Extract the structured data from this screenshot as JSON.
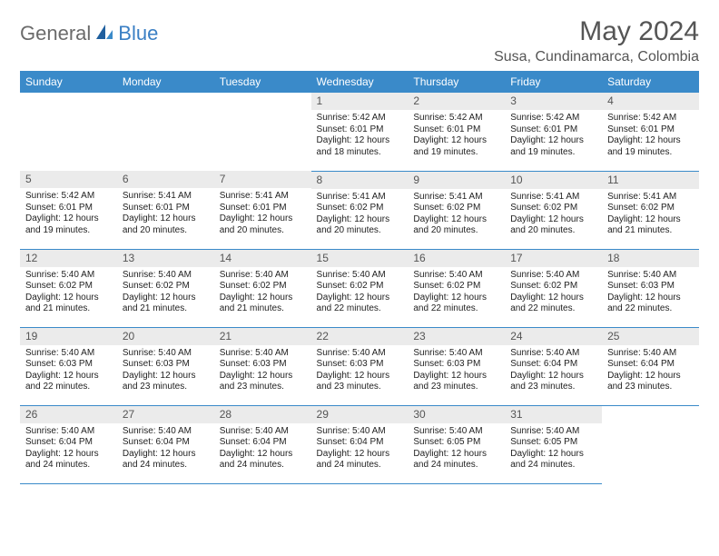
{
  "brand": {
    "part1": "General",
    "part2": "Blue"
  },
  "title": "May 2024",
  "location": "Susa, Cundinamarca, Colombia",
  "header_bg": "#3a8ac9",
  "dayname_bg": "#ebebeb",
  "weekdays": [
    "Sunday",
    "Monday",
    "Tuesday",
    "Wednesday",
    "Thursday",
    "Friday",
    "Saturday"
  ],
  "labels": {
    "sunrise": "Sunrise:",
    "sunset": "Sunset:",
    "daylight": "Daylight:"
  },
  "weeks": [
    [
      null,
      null,
      null,
      {
        "d": "1",
        "sr": "5:42 AM",
        "ss": "6:01 PM",
        "dl": "12 hours and 18 minutes."
      },
      {
        "d": "2",
        "sr": "5:42 AM",
        "ss": "6:01 PM",
        "dl": "12 hours and 19 minutes."
      },
      {
        "d": "3",
        "sr": "5:42 AM",
        "ss": "6:01 PM",
        "dl": "12 hours and 19 minutes."
      },
      {
        "d": "4",
        "sr": "5:42 AM",
        "ss": "6:01 PM",
        "dl": "12 hours and 19 minutes."
      }
    ],
    [
      {
        "d": "5",
        "sr": "5:42 AM",
        "ss": "6:01 PM",
        "dl": "12 hours and 19 minutes."
      },
      {
        "d": "6",
        "sr": "5:41 AM",
        "ss": "6:01 PM",
        "dl": "12 hours and 20 minutes."
      },
      {
        "d": "7",
        "sr": "5:41 AM",
        "ss": "6:01 PM",
        "dl": "12 hours and 20 minutes."
      },
      {
        "d": "8",
        "sr": "5:41 AM",
        "ss": "6:02 PM",
        "dl": "12 hours and 20 minutes."
      },
      {
        "d": "9",
        "sr": "5:41 AM",
        "ss": "6:02 PM",
        "dl": "12 hours and 20 minutes."
      },
      {
        "d": "10",
        "sr": "5:41 AM",
        "ss": "6:02 PM",
        "dl": "12 hours and 20 minutes."
      },
      {
        "d": "11",
        "sr": "5:41 AM",
        "ss": "6:02 PM",
        "dl": "12 hours and 21 minutes."
      }
    ],
    [
      {
        "d": "12",
        "sr": "5:40 AM",
        "ss": "6:02 PM",
        "dl": "12 hours and 21 minutes."
      },
      {
        "d": "13",
        "sr": "5:40 AM",
        "ss": "6:02 PM",
        "dl": "12 hours and 21 minutes."
      },
      {
        "d": "14",
        "sr": "5:40 AM",
        "ss": "6:02 PM",
        "dl": "12 hours and 21 minutes."
      },
      {
        "d": "15",
        "sr": "5:40 AM",
        "ss": "6:02 PM",
        "dl": "12 hours and 22 minutes."
      },
      {
        "d": "16",
        "sr": "5:40 AM",
        "ss": "6:02 PM",
        "dl": "12 hours and 22 minutes."
      },
      {
        "d": "17",
        "sr": "5:40 AM",
        "ss": "6:02 PM",
        "dl": "12 hours and 22 minutes."
      },
      {
        "d": "18",
        "sr": "5:40 AM",
        "ss": "6:03 PM",
        "dl": "12 hours and 22 minutes."
      }
    ],
    [
      {
        "d": "19",
        "sr": "5:40 AM",
        "ss": "6:03 PM",
        "dl": "12 hours and 22 minutes."
      },
      {
        "d": "20",
        "sr": "5:40 AM",
        "ss": "6:03 PM",
        "dl": "12 hours and 23 minutes."
      },
      {
        "d": "21",
        "sr": "5:40 AM",
        "ss": "6:03 PM",
        "dl": "12 hours and 23 minutes."
      },
      {
        "d": "22",
        "sr": "5:40 AM",
        "ss": "6:03 PM",
        "dl": "12 hours and 23 minutes."
      },
      {
        "d": "23",
        "sr": "5:40 AM",
        "ss": "6:03 PM",
        "dl": "12 hours and 23 minutes."
      },
      {
        "d": "24",
        "sr": "5:40 AM",
        "ss": "6:04 PM",
        "dl": "12 hours and 23 minutes."
      },
      {
        "d": "25",
        "sr": "5:40 AM",
        "ss": "6:04 PM",
        "dl": "12 hours and 23 minutes."
      }
    ],
    [
      {
        "d": "26",
        "sr": "5:40 AM",
        "ss": "6:04 PM",
        "dl": "12 hours and 24 minutes."
      },
      {
        "d": "27",
        "sr": "5:40 AM",
        "ss": "6:04 PM",
        "dl": "12 hours and 24 minutes."
      },
      {
        "d": "28",
        "sr": "5:40 AM",
        "ss": "6:04 PM",
        "dl": "12 hours and 24 minutes."
      },
      {
        "d": "29",
        "sr": "5:40 AM",
        "ss": "6:04 PM",
        "dl": "12 hours and 24 minutes."
      },
      {
        "d": "30",
        "sr": "5:40 AM",
        "ss": "6:05 PM",
        "dl": "12 hours and 24 minutes."
      },
      {
        "d": "31",
        "sr": "5:40 AM",
        "ss": "6:05 PM",
        "dl": "12 hours and 24 minutes."
      },
      null
    ]
  ]
}
